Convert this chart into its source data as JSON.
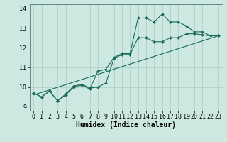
{
  "title": "",
  "xlabel": "Humidex (Indice chaleur)",
  "ylabel": "",
  "bg_color": "#cce8e0",
  "line_color": "#1a6b5a",
  "grid_color": "#aaccc4",
  "xlim": [
    -0.5,
    23.5
  ],
  "ylim": [
    8.8,
    14.2
  ],
  "xticks": [
    0,
    1,
    2,
    3,
    4,
    5,
    6,
    7,
    8,
    9,
    10,
    11,
    12,
    13,
    14,
    15,
    16,
    17,
    18,
    19,
    20,
    21,
    22,
    23
  ],
  "yticks": [
    9,
    10,
    11,
    12,
    13,
    14
  ],
  "series1_y": [
    9.7,
    9.5,
    9.8,
    9.3,
    9.6,
    10.0,
    10.1,
    9.9,
    10.8,
    10.9,
    11.5,
    11.7,
    11.7,
    13.5,
    13.5,
    13.3,
    13.7,
    13.3,
    13.3,
    13.1,
    12.8,
    12.8,
    12.6,
    12.6
  ],
  "series2_y": [
    9.7,
    9.5,
    9.8,
    9.3,
    9.65,
    10.05,
    10.15,
    9.95,
    10.0,
    10.2,
    11.45,
    11.65,
    11.65,
    12.5,
    12.5,
    12.3,
    12.3,
    12.5,
    12.5,
    12.7,
    12.7,
    12.65,
    12.6,
    12.6
  ],
  "series3_x": [
    0,
    23
  ],
  "series3_y": [
    9.6,
    12.6
  ],
  "marker": "D",
  "markersize": 2.0,
  "linewidth": 0.8,
  "tick_fontsize": 6.0,
  "xlabel_fontsize": 7.0
}
